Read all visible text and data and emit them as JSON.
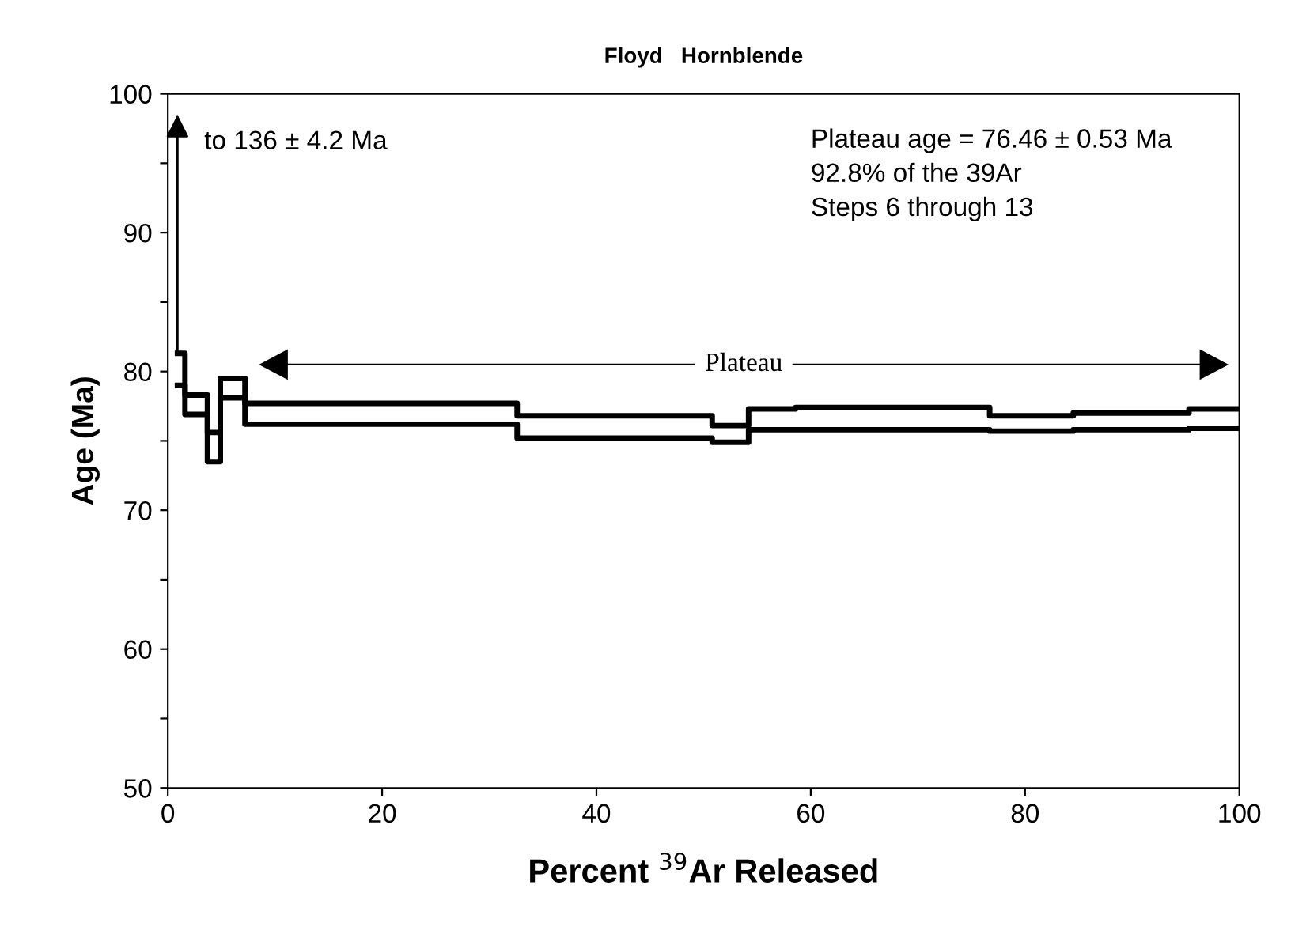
{
  "chart_data": {
    "type": "step",
    "title": "Floyd   Hornblende",
    "xlabel": "Percent $^{39}$Ar Released",
    "ylabel": "Age (Ma)",
    "x": [
      0.9,
      1.6,
      3.7,
      4.9,
      7.2,
      32.6,
      50.8,
      54.2,
      58.6,
      76.7,
      84.5,
      95.3,
      100
    ],
    "series": [
      {
        "color": "#000000",
        "values": [
          81.3,
          78.3,
          75.6,
          79.5,
          77.7,
          76.8,
          76.1,
          77.3,
          77.4,
          76.8,
          77.0,
          77.3,
          77.3
        ]
      },
      {
        "color": "#000000",
        "values": [
          79.0,
          76.9,
          73.5,
          78.1,
          76.2,
          75.2,
          74.9,
          75.8,
          75.8,
          75.7,
          75.8,
          75.9,
          75.9
        ]
      }
    ],
    "xlim": [
      0,
      100
    ],
    "ylim": [
      50,
      100
    ],
    "xticks": [
      0,
      20,
      40,
      60,
      80,
      100
    ],
    "yticks": [
      50,
      {
        "value": 55,
        "label": null
      },
      60,
      {
        "value": 65,
        "label": null
      },
      70,
      {
        "value": 75,
        "label": null
      },
      80,
      {
        "value": 85,
        "label": null
      },
      90,
      {
        "value": 95,
        "label": null
      },
      100
    ],
    "annotations": [
      {
        "text": "to 136 ± 4.2 Ma",
        "x": 0.9,
        "y": 81.3
      },
      "Plateau age = 76.46 ± 0.53 Ma\n92.8% of the 39Ar\nSteps 6 through 13",
      "Plateau"
    ],
    "grid": false,
    "legend": false
  }
}
